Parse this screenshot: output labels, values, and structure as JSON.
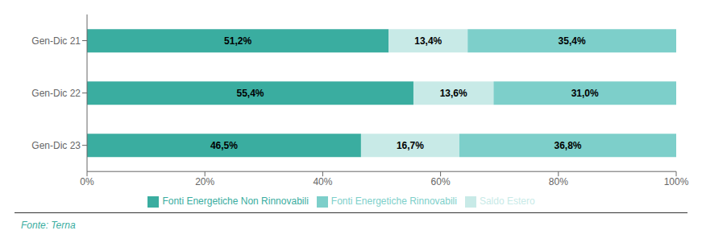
{
  "chart_data": {
    "type": "bar",
    "orientation": "horizontal",
    "stacked": true,
    "data_labels": true,
    "grid": false,
    "legend": "bottom",
    "categories": [
      "Gen-Dic 23",
      "Gen-Dic 22",
      "Gen-Dic 21"
    ],
    "series": [
      {
        "name": "Fonti Energetiche Non Rinnovabili",
        "color": "#3aada0",
        "values": [
          46.5,
          55.4,
          51.2
        ],
        "value_labels": [
          "46,5%",
          "55,4%",
          "51,2%"
        ]
      },
      {
        "name": "Saldo Estero",
        "color": "#c8eae7",
        "values": [
          16.7,
          13.6,
          13.4
        ],
        "value_labels": [
          "16,7%",
          "13,6%",
          "13,4%"
        ]
      },
      {
        "name": "Fonti Energetiche Rinnovabili",
        "color": "#7dcfca",
        "values": [
          36.8,
          31.0,
          35.4
        ],
        "value_labels": [
          "36,8%",
          "31,0%",
          "35,4%"
        ]
      }
    ],
    "xlim": [
      0,
      100
    ],
    "xticks": [
      {
        "value": 0,
        "label": "0%"
      },
      {
        "value": 20,
        "label": "20%"
      },
      {
        "value": 40,
        "label": "40%"
      },
      {
        "value": 60,
        "label": "60%"
      },
      {
        "value": 80,
        "label": "80%"
      },
      {
        "value": 100,
        "label": "100%"
      }
    ],
    "annotations": [
      {
        "text": "Fonte: Terna",
        "color": "#3aada0"
      }
    ]
  }
}
